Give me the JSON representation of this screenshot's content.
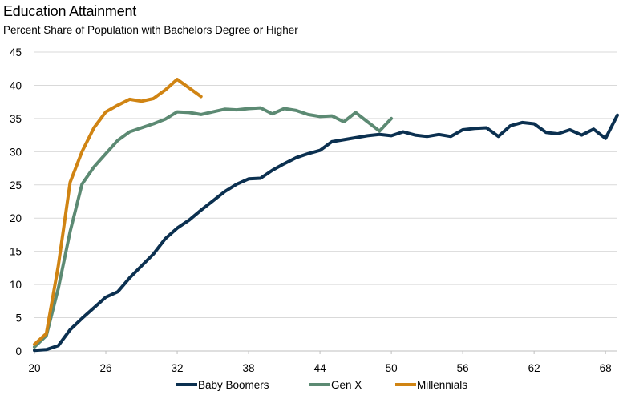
{
  "chart_data": {
    "type": "line",
    "title": "Education Attainment",
    "subtitle": "Percent Share of Population with Bachelors Degree or Higher",
    "xlabel": "",
    "ylabel": "",
    "xlim": [
      20,
      69
    ],
    "ylim": [
      0,
      45
    ],
    "x_ticks": [
      20,
      26,
      32,
      38,
      44,
      50,
      56,
      62,
      68
    ],
    "y_ticks": [
      0,
      5,
      10,
      15,
      20,
      25,
      30,
      35,
      40,
      45
    ],
    "grid": "horizontal",
    "legend_position": "bottom",
    "series": [
      {
        "name": "Baby Boomers",
        "color": "#0b3050",
        "x": [
          20,
          21,
          22,
          23,
          24,
          25,
          26,
          27,
          28,
          29,
          30,
          31,
          32,
          33,
          34,
          35,
          36,
          37,
          38,
          39,
          40,
          41,
          42,
          43,
          44,
          45,
          46,
          47,
          48,
          49,
          50,
          51,
          52,
          53,
          54,
          55,
          56,
          57,
          58,
          59,
          60,
          61,
          62,
          63,
          64,
          65,
          66,
          67,
          68,
          69
        ],
        "values": [
          0.1,
          0.2,
          0.8,
          3.2,
          4.9,
          6.5,
          8.1,
          8.9,
          11.0,
          12.8,
          14.6,
          16.9,
          18.5,
          19.7,
          21.2,
          22.6,
          24.0,
          25.1,
          25.9,
          26.0,
          27.2,
          28.2,
          29.1,
          29.7,
          30.2,
          31.5,
          31.8,
          32.1,
          32.4,
          32.6,
          32.4,
          33.0,
          32.5,
          32.3,
          32.6,
          32.3,
          33.3,
          33.5,
          33.6,
          32.3,
          33.9,
          34.4,
          34.2,
          32.9,
          32.7,
          33.3,
          32.5,
          33.4,
          32.0,
          35.5
        ]
      },
      {
        "name": "Gen X",
        "color": "#5c8a73",
        "x": [
          20,
          21,
          22,
          23,
          24,
          25,
          26,
          27,
          28,
          29,
          30,
          31,
          32,
          33,
          34,
          35,
          36,
          37,
          38,
          39,
          40,
          41,
          42,
          43,
          44,
          45,
          46,
          47,
          48,
          49,
          50
        ],
        "values": [
          0.6,
          2.3,
          9.4,
          18.0,
          25.1,
          27.7,
          29.7,
          31.7,
          33.0,
          33.6,
          34.2,
          34.9,
          36.0,
          35.9,
          35.6,
          36.0,
          36.4,
          36.3,
          36.5,
          36.6,
          35.7,
          36.5,
          36.2,
          35.6,
          35.3,
          35.4,
          34.5,
          35.9,
          34.5,
          33.1,
          35.0
        ]
      },
      {
        "name": "Millennials",
        "color": "#d08413",
        "x": [
          20,
          21,
          22,
          23,
          24,
          25,
          26,
          27,
          28,
          29,
          30,
          31,
          32,
          33,
          34
        ],
        "values": [
          1.0,
          2.6,
          12.8,
          25.4,
          30.0,
          33.6,
          36.0,
          37.0,
          37.9,
          37.6,
          38.0,
          39.3,
          40.9,
          39.6,
          38.3
        ]
      }
    ]
  }
}
